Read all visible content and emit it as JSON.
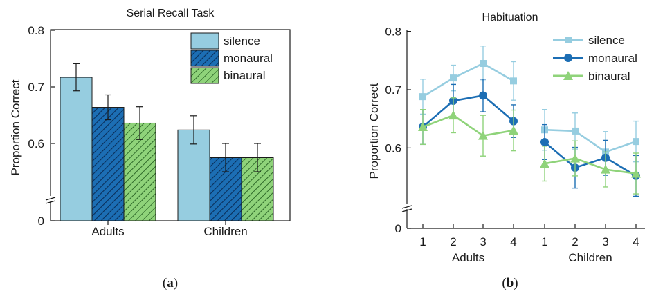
{
  "chart_data": [
    {
      "type": "bar",
      "panel_label": "a",
      "title": "Serial Recall Task",
      "ylabel": "Proportion Correct",
      "categories": [
        "Adults",
        "Children"
      ],
      "yticks": [
        "0",
        "0.6",
        "0.7",
        "0.8"
      ],
      "ylim": [
        0.5,
        0.8
      ],
      "axis_break": true,
      "legend_position": "top-right",
      "series": [
        {
          "name": "silence",
          "values": [
            0.717,
            0.624
          ],
          "errors": [
            0.024,
            0.025
          ],
          "color": "#96cde0",
          "pattern": "none"
        },
        {
          "name": "monaural",
          "values": [
            0.664,
            0.575
          ],
          "errors": [
            0.022,
            0.025
          ],
          "color": "#1c6eb4",
          "pattern": "hatch"
        },
        {
          "name": "binaural",
          "values": [
            0.636,
            0.575
          ],
          "errors": [
            0.029,
            0.025
          ],
          "color": "#8fd37a",
          "pattern": "hatch"
        }
      ]
    },
    {
      "type": "line",
      "panel_label": "b",
      "title": "Habituation",
      "ylabel": "Proportion Correct",
      "groups": [
        "Adults",
        "Children"
      ],
      "x": [
        "1",
        "2",
        "3",
        "4"
      ],
      "yticks": [
        "0",
        "0.6",
        "0.7",
        "0.8"
      ],
      "ylim": [
        0.5,
        0.8
      ],
      "axis_break": true,
      "legend_position": "top-right",
      "series": [
        {
          "name": "silence",
          "marker": "square",
          "color": "#96cde0",
          "values": [
            [
              0.688,
              0.72,
              0.745,
              0.715
            ],
            [
              0.631,
              0.629,
              0.593,
              0.611
            ]
          ],
          "errors": [
            [
              0.03,
              0.022,
              0.03,
              0.033
            ],
            [
              0.035,
              0.031,
              0.035,
              0.035
            ]
          ]
        },
        {
          "name": "monaural",
          "marker": "circle",
          "color": "#1c6eb4",
          "values": [
            [
              0.636,
              0.681,
              0.69,
              0.646
            ],
            [
              0.61,
              0.566,
              0.583,
              0.552
            ]
          ],
          "errors": [
            [
              0.03,
              0.028,
              0.028,
              0.028
            ],
            [
              0.03,
              0.035,
              0.03,
              0.035
            ]
          ]
        },
        {
          "name": "binaural",
          "marker": "triangle",
          "color": "#8fd37a",
          "values": [
            [
              0.636,
              0.656,
              0.621,
              0.63
            ],
            [
              0.573,
              0.582,
              0.563,
              0.556
            ]
          ],
          "errors": [
            [
              0.03,
              0.03,
              0.035,
              0.035
            ],
            [
              0.03,
              0.03,
              0.03,
              0.035
            ]
          ]
        }
      ]
    }
  ]
}
